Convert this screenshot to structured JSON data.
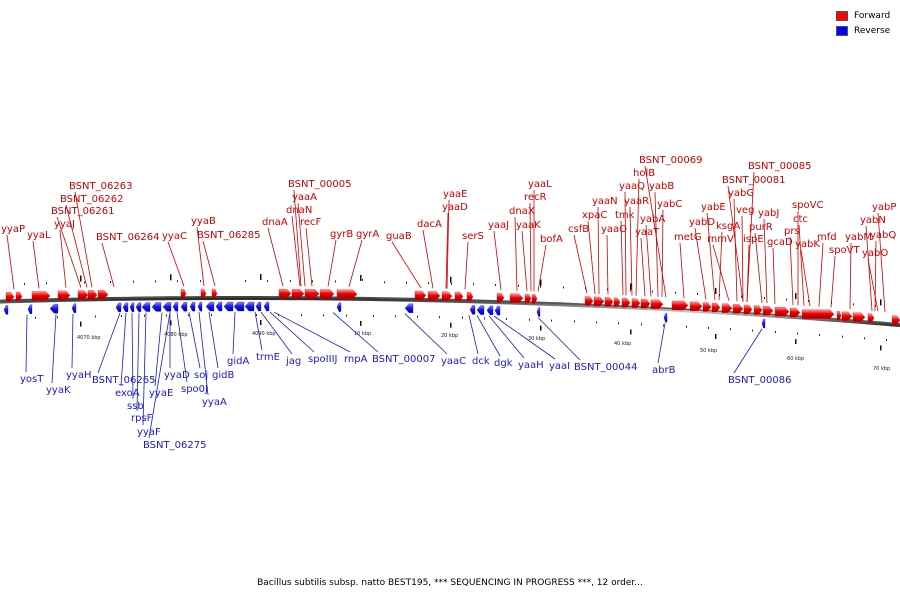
{
  "legend": {
    "forward_label": "Forward",
    "reverse_label": "Reverse",
    "forward_color": "#ff0000",
    "reverse_color": "#0000ff"
  },
  "caption": "Bacillus subtilis subsp. natto BEST195, *** SEQUENCING IN PROGRESS ***, 12 order...",
  "axis_labels": [
    "4070 kbp",
    "4080 kbp",
    "4090 kbp",
    "10 kbp",
    "20 kbp",
    "30 kbp",
    "40 kbp",
    "50 kbp",
    "60 kbp",
    "70 kbp"
  ],
  "forward_labels": [
    "yyaP",
    "yyaL",
    "BSNT_06263",
    "BSNT_06262",
    "BSNT_06261",
    "yyaJ",
    "BSNT_06264",
    "yyaC",
    "yyaB",
    "BSNT_06285",
    "BSNT_00005",
    "yaaA",
    "dnaA",
    "dnaN",
    "recF",
    "gyrB",
    "gyrA",
    "guaB",
    "yaaE",
    "dacA",
    "yaaD",
    "serS",
    "yaaJ",
    "yaaL",
    "recR",
    "dnaX",
    "yaaK",
    "bofA",
    "csfB",
    "xpaC",
    "yaaN",
    "yaaO",
    "BSNT_00069",
    "holB",
    "yaaQ",
    "yaaR",
    "tmk",
    "yabA",
    "yaaT",
    "yabB",
    "yabC",
    "metG",
    "yabD",
    "yabE",
    "BSNT_00085",
    "BSNT_00081",
    "yabG",
    "ksgA",
    "veg",
    "rnmV",
    "ispE",
    "yabJ",
    "purR",
    "spoVC",
    "ctc",
    "gcaD",
    "prs",
    "yabK",
    "mfd",
    "spoVT",
    "yabM",
    "yabP",
    "yabN",
    "yabQ",
    "yabO"
  ],
  "reverse_labels": [
    "yosT",
    "yyaK",
    "yyaH",
    "BSNT_06265",
    "exoA",
    "ssb",
    "rpsF",
    "yyaF",
    "BSNT_06275",
    "yyaD",
    "yyaE",
    "spo0J",
    "soj",
    "gidB",
    "yyaA",
    "gidA",
    "trmE",
    "jag",
    "spoIIIJ",
    "rnpA",
    "BSNT_00007",
    "yaaC",
    "dck",
    "dgk",
    "yaaH",
    "yaaI",
    "BSNT_00044",
    "abrB",
    "BSNT_00086"
  ]
}
